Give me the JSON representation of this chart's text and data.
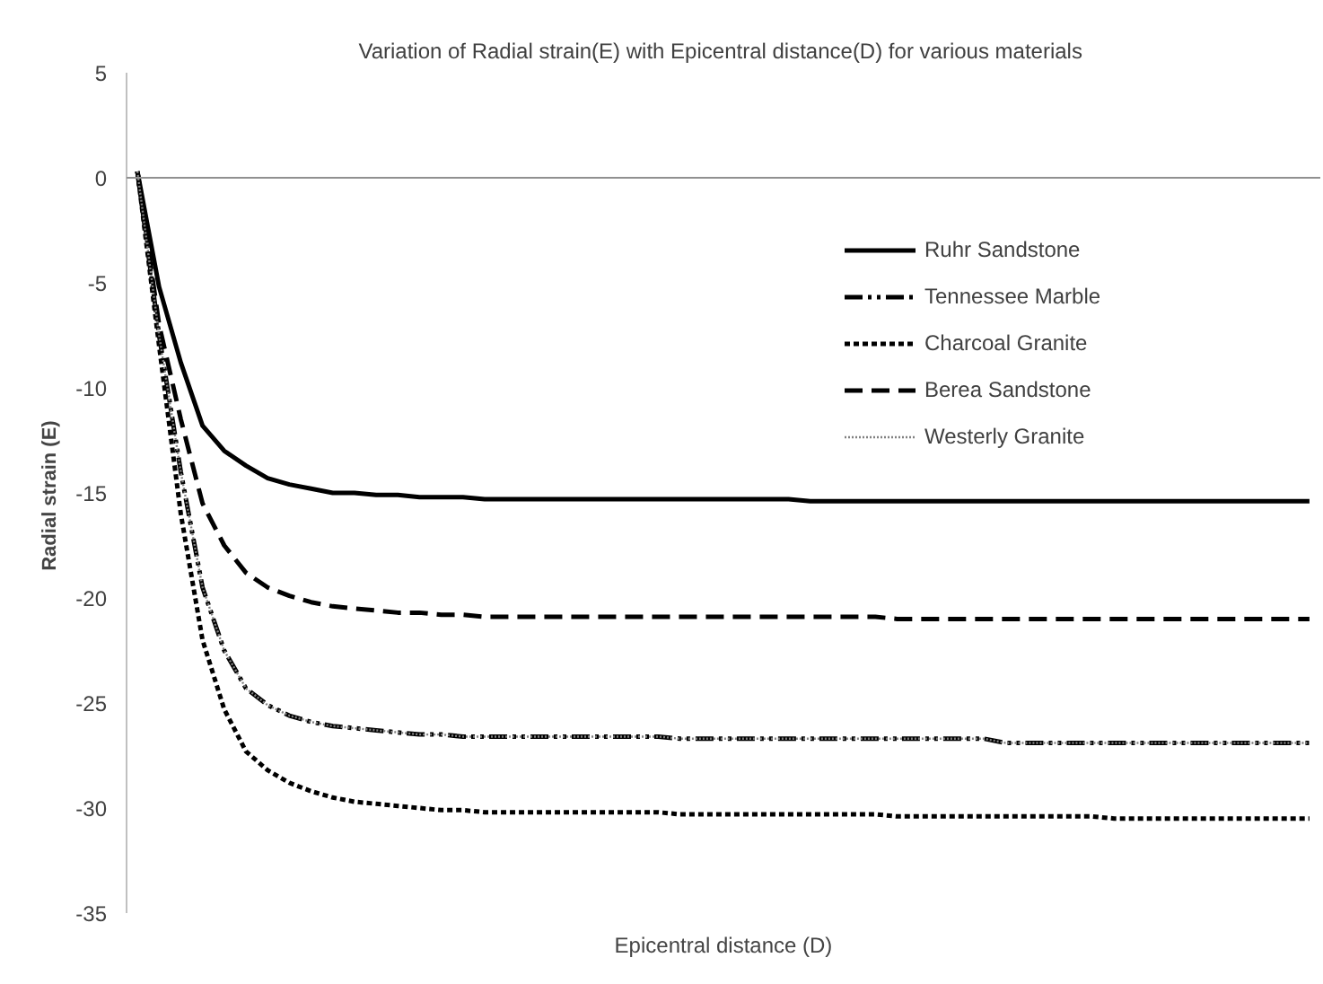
{
  "chart_data": {
    "type": "line",
    "title": "Variation of Radial strain(E) with  Epicentral distance(D) for various materials",
    "xlabel": "Epicentral distance (D)",
    "ylabel": "Radial strain  (E)",
    "categories": [
      null,
      null,
      null,
      null,
      null,
      null,
      null,
      null,
      null,
      null,
      null,
      null,
      null,
      null,
      null,
      null,
      null,
      null,
      null,
      null,
      null,
      null,
      null,
      null,
      null,
      null,
      null,
      null,
      null,
      null,
      null,
      null,
      null,
      null,
      null,
      null,
      null,
      null,
      null,
      null,
      null,
      null,
      null,
      null,
      null,
      null,
      null,
      null,
      null,
      null,
      null,
      null,
      null,
      null,
      null
    ],
    "ylim": [
      -35,
      5
    ],
    "yticks": [
      -35,
      -30,
      -25,
      -20,
      -15,
      -10,
      -5,
      0,
      5
    ],
    "grid": false,
    "ref_lines": [
      {
        "axis": "y",
        "value": 0,
        "color": "#909090"
      }
    ],
    "legend": "right",
    "tick_labels": "y",
    "series": [
      {
        "name": "Ruhr Sandstone",
        "color": "#000000",
        "line_style": "solid",
        "values": [
          0.3,
          -5.2,
          -8.8,
          -11.8,
          -13.0,
          -13.7,
          -14.3,
          -14.6,
          -14.8,
          -15.0,
          -15.0,
          -15.1,
          -15.1,
          -15.2,
          -15.2,
          -15.2,
          -15.3,
          -15.3,
          -15.3,
          -15.3,
          -15.3,
          -15.3,
          -15.3,
          -15.3,
          -15.3,
          -15.3,
          -15.3,
          -15.3,
          -15.3,
          -15.3,
          -15.3,
          -15.4,
          -15.4,
          -15.4,
          -15.4,
          -15.4,
          -15.4,
          -15.4,
          -15.4,
          -15.4,
          -15.4,
          -15.4,
          -15.4,
          -15.4,
          -15.4,
          -15.4,
          -15.4,
          -15.4,
          -15.4,
          -15.4,
          -15.4,
          -15.4,
          -15.4,
          -15.4,
          -15.4
        ]
      },
      {
        "name": "Tennessee Marble",
        "color": "#000000",
        "line_style": "dashdot",
        "values": [
          0.3,
          -7.5,
          -14.0,
          -19.5,
          -22.5,
          -24.3,
          -25.1,
          -25.6,
          -25.9,
          -26.1,
          -26.2,
          -26.3,
          -26.4,
          -26.5,
          -26.5,
          -26.6,
          -26.6,
          -26.6,
          -26.6,
          -26.6,
          -26.6,
          -26.6,
          -26.6,
          -26.6,
          -26.6,
          -26.7,
          -26.7,
          -26.7,
          -26.7,
          -26.7,
          -26.7,
          -26.7,
          -26.7,
          -26.7,
          -26.7,
          -26.7,
          -26.7,
          -26.7,
          -26.7,
          -26.7,
          -26.9,
          -26.9,
          -26.9,
          -26.9,
          -26.9,
          -26.9,
          -26.9,
          -26.9,
          -26.9,
          -26.9,
          -26.9,
          -26.9,
          -26.9,
          -26.9,
          -26.9
        ]
      },
      {
        "name": "Charcoal Granite",
        "color": "#000000",
        "line_style": "dotted",
        "values": [
          0.3,
          -8.0,
          -16.0,
          -22.0,
          -25.3,
          -27.3,
          -28.2,
          -28.8,
          -29.2,
          -29.5,
          -29.7,
          -29.8,
          -29.9,
          -30.0,
          -30.1,
          -30.1,
          -30.2,
          -30.2,
          -30.2,
          -30.2,
          -30.2,
          -30.2,
          -30.2,
          -30.2,
          -30.2,
          -30.3,
          -30.3,
          -30.3,
          -30.3,
          -30.3,
          -30.3,
          -30.3,
          -30.3,
          -30.3,
          -30.3,
          -30.4,
          -30.4,
          -30.4,
          -30.4,
          -30.4,
          -30.4,
          -30.4,
          -30.4,
          -30.4,
          -30.4,
          -30.5,
          -30.5,
          -30.5,
          -30.5,
          -30.5,
          -30.5,
          -30.5,
          -30.5,
          -30.5,
          -30.5
        ]
      },
      {
        "name": "Berea Sandstone",
        "color": "#000000",
        "line_style": "dashed",
        "values": [
          0.3,
          -7.0,
          -11.5,
          -15.5,
          -17.5,
          -18.8,
          -19.5,
          -19.9,
          -20.2,
          -20.4,
          -20.5,
          -20.6,
          -20.7,
          -20.7,
          -20.8,
          -20.8,
          -20.9,
          -20.9,
          -20.9,
          -20.9,
          -20.9,
          -20.9,
          -20.9,
          -20.9,
          -20.9,
          -20.9,
          -20.9,
          -20.9,
          -20.9,
          -20.9,
          -20.9,
          -20.9,
          -20.9,
          -20.9,
          -20.9,
          -21.0,
          -21.0,
          -21.0,
          -21.0,
          -21.0,
          -21.0,
          -21.0,
          -21.0,
          -21.0,
          -21.0,
          -21.0,
          -21.0,
          -21.0,
          -21.0,
          -21.0,
          -21.0,
          -21.0,
          -21.0,
          -21.0,
          -21.0
        ]
      },
      {
        "name": "Westerly Granite",
        "color": "#808080",
        "line_style": "dotted",
        "values": [
          0.3,
          -7.5,
          -14.0,
          -19.5,
          -22.5,
          -24.3,
          -25.1,
          -25.6,
          -25.9,
          -26.1,
          -26.2,
          -26.3,
          -26.4,
          -26.5,
          -26.5,
          -26.6,
          -26.6,
          -26.6,
          -26.6,
          -26.6,
          -26.6,
          -26.6,
          -26.6,
          -26.6,
          -26.6,
          -26.7,
          -26.7,
          -26.7,
          -26.7,
          -26.7,
          -26.7,
          -26.7,
          -26.7,
          -26.7,
          -26.7,
          -26.7,
          -26.7,
          -26.7,
          -26.7,
          -26.7,
          -26.9,
          -26.9,
          -26.9,
          -26.9,
          -26.9,
          -26.9,
          -26.9,
          -26.9,
          -26.9,
          -26.9,
          -26.9,
          -26.9,
          -26.9,
          -26.9,
          -26.9
        ]
      }
    ]
  }
}
